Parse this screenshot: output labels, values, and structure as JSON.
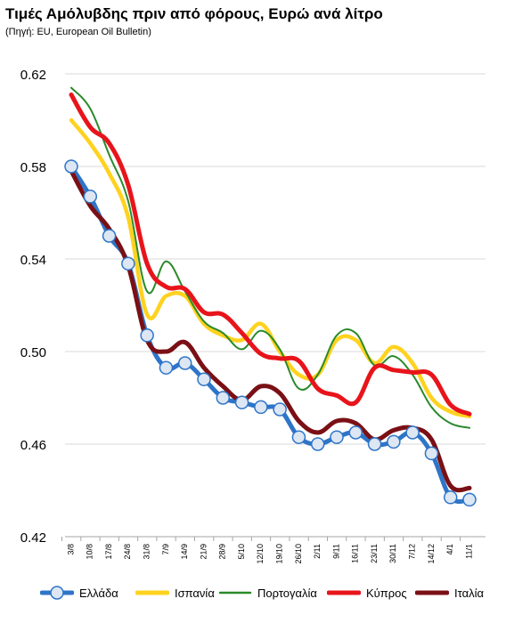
{
  "chart_data": {
    "type": "line",
    "title": "Τιμές Αμόλυβδης πριν από φόρους, Ευρώ ανά λίτρο",
    "subtitle": "(Πηγή: EU, European Oil Bulletin)",
    "categories": [
      "3/8",
      "10/8",
      "17/8",
      "24/8",
      "31/8",
      "7/9",
      "14/9",
      "21/9",
      "28/9",
      "5/10",
      "12/10",
      "19/10",
      "26/10",
      "2/11",
      "9/11",
      "16/11",
      "23/11",
      "30/11",
      "7/12",
      "14/12",
      "4/1",
      "11/1"
    ],
    "ylim": [
      0.42,
      0.62
    ],
    "yticks": [
      0.42,
      0.46,
      0.5,
      0.54,
      0.58,
      0.62
    ],
    "ytick_labels": [
      "0.42",
      "0.46",
      "0.50",
      "0.54",
      "0.58",
      "0.62"
    ],
    "grid": true,
    "legend_position": "bottom",
    "series": [
      {
        "name": "Ελλάδα",
        "color": "#2E75C8",
        "marker": "circle",
        "values": [
          0.58,
          0.567,
          0.55,
          0.538,
          0.507,
          0.493,
          0.495,
          0.488,
          0.48,
          0.478,
          0.476,
          0.475,
          0.463,
          0.46,
          0.463,
          0.465,
          0.46,
          0.461,
          0.465,
          0.456,
          0.437,
          0.436
        ]
      },
      {
        "name": "Ισπανία",
        "color": "#FFD21F",
        "marker": "none",
        "values": [
          0.6,
          0.59,
          0.577,
          0.558,
          0.516,
          0.524,
          0.524,
          0.512,
          0.507,
          0.505,
          0.512,
          0.5,
          0.49,
          0.49,
          0.505,
          0.505,
          0.495,
          0.502,
          0.495,
          0.48,
          0.474,
          0.472
        ]
      },
      {
        "name": "Πορτογαλία",
        "color": "#2A8A2A",
        "marker": "none",
        "values": [
          0.614,
          0.605,
          0.585,
          0.565,
          0.526,
          0.539,
          0.526,
          0.513,
          0.508,
          0.501,
          0.509,
          0.501,
          0.484,
          0.49,
          0.507,
          0.508,
          0.494,
          0.498,
          0.49,
          0.476,
          0.469,
          0.467
        ]
      },
      {
        "name": "Κύπρος",
        "color": "#E8141B",
        "marker": "none",
        "values": [
          0.611,
          0.597,
          0.59,
          0.572,
          0.538,
          0.528,
          0.527,
          0.517,
          0.516,
          0.508,
          0.499,
          0.497,
          0.496,
          0.484,
          0.481,
          0.478,
          0.493,
          0.492,
          0.491,
          0.49,
          0.477,
          0.473
        ]
      },
      {
        "name": "Ιταλία",
        "color": "#7A1015",
        "marker": "none",
        "values": [
          0.578,
          0.563,
          0.553,
          0.537,
          0.505,
          0.5,
          0.504,
          0.493,
          0.485,
          0.479,
          0.485,
          0.482,
          0.47,
          0.465,
          0.47,
          0.469,
          0.462,
          0.466,
          0.467,
          0.462,
          0.442,
          0.441
        ]
      }
    ]
  }
}
